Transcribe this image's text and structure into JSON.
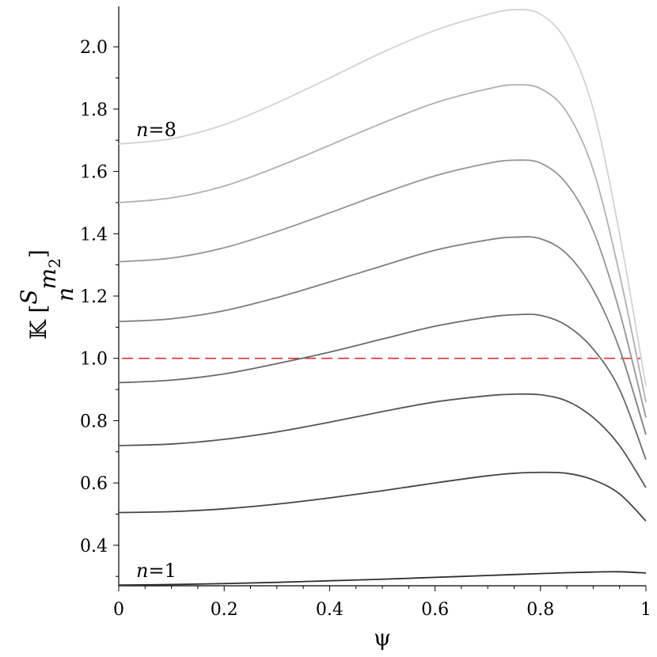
{
  "chart_data": {
    "type": "line",
    "title": "",
    "xlabel": "ψ",
    "ylabel_parts": {
      "prefix": "𝕂",
      "left_brace": "[",
      "S": "S",
      "n": "n",
      "m": "m",
      "sub": "2",
      "right_brace": "]"
    },
    "xlim": [
      0,
      1
    ],
    "ylim": [
      0.27,
      2.13
    ],
    "xticks": [
      0,
      0.2,
      0.4,
      0.6,
      0.8,
      1
    ],
    "xtick_labels": [
      "0",
      "0.2",
      "0.4",
      "0.6",
      "0.8",
      "1"
    ],
    "yticks": [
      0.4,
      0.6,
      0.8,
      1.0,
      1.2,
      1.4,
      1.6,
      1.8,
      2.0
    ],
    "ytick_labels": [
      "0.4",
      "0.6",
      "0.8",
      "1.0",
      "1.2",
      "1.4",
      "1.6",
      "1.8",
      "2.0"
    ],
    "x": [
      0,
      0.1,
      0.2,
      0.3,
      0.4,
      0.5,
      0.6,
      0.7,
      0.75,
      0.8,
      0.85,
      0.9,
      0.95,
      1.0
    ],
    "series": [
      {
        "n": 1,
        "color": "#2e2e2e",
        "values": [
          0.272,
          0.274,
          0.277,
          0.281,
          0.286,
          0.291,
          0.297,
          0.303,
          0.306,
          0.309,
          0.312,
          0.314,
          0.315,
          0.311
        ]
      },
      {
        "n": 2,
        "color": "#444444",
        "values": [
          0.505,
          0.508,
          0.517,
          0.532,
          0.552,
          0.575,
          0.6,
          0.623,
          0.631,
          0.634,
          0.631,
          0.61,
          0.565,
          0.478
        ]
      },
      {
        "n": 3,
        "color": "#555555",
        "values": [
          0.72,
          0.725,
          0.74,
          0.764,
          0.795,
          0.829,
          0.86,
          0.88,
          0.885,
          0.883,
          0.863,
          0.81,
          0.72,
          0.585
        ]
      },
      {
        "n": 4,
        "color": "#6a6a6a",
        "values": [
          0.922,
          0.93,
          0.95,
          0.983,
          1.02,
          1.062,
          1.103,
          1.132,
          1.14,
          1.138,
          1.105,
          1.03,
          0.9,
          0.675
        ]
      },
      {
        "n": 5,
        "color": "#7e7e7e",
        "values": [
          1.118,
          1.127,
          1.153,
          1.195,
          1.245,
          1.297,
          1.347,
          1.38,
          1.389,
          1.384,
          1.335,
          1.22,
          1.03,
          0.755
        ]
      },
      {
        "n": 6,
        "color": "#959595",
        "values": [
          1.31,
          1.322,
          1.355,
          1.407,
          1.467,
          1.529,
          1.586,
          1.626,
          1.636,
          1.627,
          1.56,
          1.41,
          1.15,
          0.81
        ]
      },
      {
        "n": 7,
        "color": "#b0b0b0",
        "values": [
          1.5,
          1.515,
          1.553,
          1.614,
          1.684,
          1.755,
          1.82,
          1.865,
          1.878,
          1.866,
          1.79,
          1.605,
          1.27,
          0.86
        ]
      },
      {
        "n": 8,
        "color": "#d2d2d2",
        "values": [
          1.688,
          1.705,
          1.75,
          1.82,
          1.9,
          1.982,
          2.053,
          2.104,
          2.119,
          2.105,
          2.015,
          1.8,
          1.4,
          0.91
        ]
      }
    ],
    "reference_line": {
      "y": 1.0,
      "color": "#e03030",
      "style": "dashed"
    },
    "annotations": [
      {
        "var": "n",
        "eq": "=",
        "val": "8"
      },
      {
        "var": "n",
        "eq": "=",
        "val": "1"
      }
    ]
  }
}
